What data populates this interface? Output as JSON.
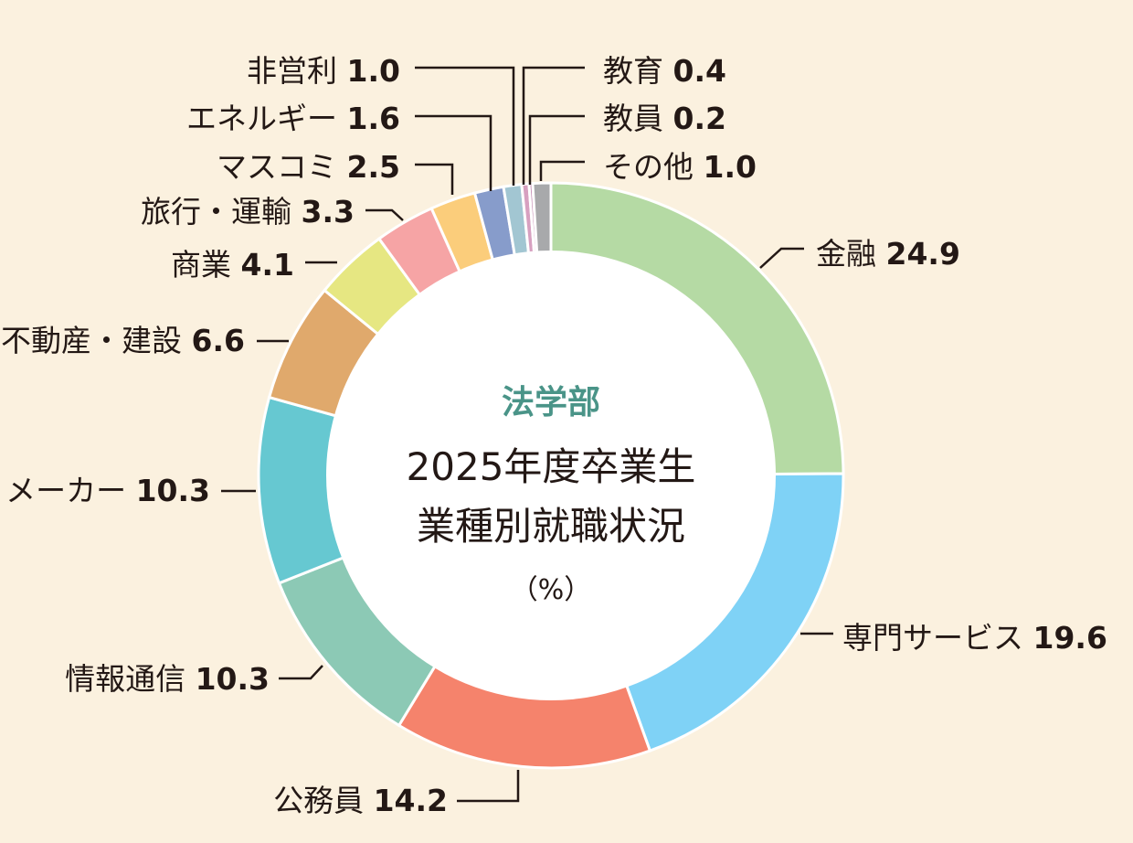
{
  "chart_data": {
    "type": "pie",
    "variant": "donut",
    "department": "法学部",
    "title_lines": [
      "2025年度卒業生",
      "業種別就職状況"
    ],
    "unit": "（%）",
    "legend": "none",
    "slices": [
      {
        "label": "金融",
        "value": 24.9,
        "display": "24.9",
        "color": "#b5daa4"
      },
      {
        "label": "専門サービス",
        "value": 19.6,
        "display": "19.6",
        "color": "#7fd2f6"
      },
      {
        "label": "公務員",
        "value": 14.2,
        "display": "14.2",
        "color": "#f5836c"
      },
      {
        "label": "情報通信",
        "value": 10.3,
        "display": "10.3",
        "color": "#8cc9b5"
      },
      {
        "label": "メーカー",
        "value": 10.3,
        "display": "10.3",
        "color": "#66c8d1"
      },
      {
        "label": "不動産・建設",
        "value": 6.6,
        "display": "6.6",
        "color": "#e0a96c"
      },
      {
        "label": "商業",
        "value": 4.1,
        "display": "4.1",
        "color": "#e6e782"
      },
      {
        "label": "旅行・運輸",
        "value": 3.3,
        "display": "3.3",
        "color": "#f6a4a5"
      },
      {
        "label": "マスコミ",
        "value": 2.5,
        "display": "2.5",
        "color": "#fbcd7b"
      },
      {
        "label": "エネルギー",
        "value": 1.6,
        "display": "1.6",
        "color": "#879ccb"
      },
      {
        "label": "非営利",
        "value": 1.0,
        "display": "1.0",
        "color": "#a2c6d2"
      },
      {
        "label": "教育",
        "value": 0.4,
        "display": "0.4",
        "color": "#d7a0c0"
      },
      {
        "label": "教員",
        "value": 0.2,
        "display": "0.2",
        "color": "#c48bb2"
      },
      {
        "label": "その他",
        "value": 1.0,
        "display": "1.0",
        "color": "#a8a9ab"
      }
    ]
  }
}
